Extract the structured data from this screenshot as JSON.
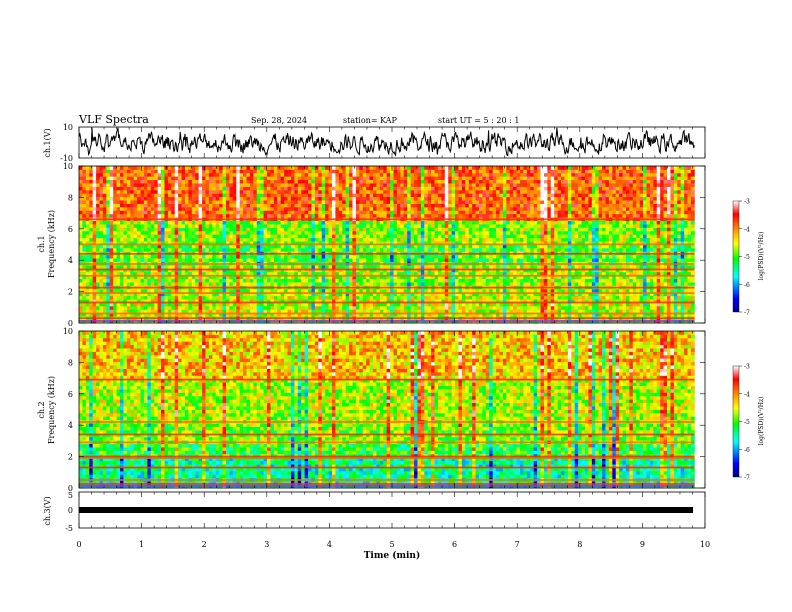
{
  "header": {
    "title": "VLF Spectra",
    "date": "Sep. 28, 2024",
    "station": "station= KAP",
    "start_ut": "start  UT  =   5  : 20 : 1"
  },
  "chart_data": [
    {
      "type": "line",
      "name": "ch1-waveform",
      "ylabel": "ch.1(V)",
      "ylim": [
        -10,
        10
      ],
      "yticks": [
        "10",
        "-10"
      ],
      "xlim": [
        0,
        10
      ]
    },
    {
      "type": "heatmap",
      "name": "ch1-spectrogram",
      "ylabel": "ch.1\nFrequency (kHz)",
      "ylim": [
        0,
        10
      ],
      "yticks": [
        "0",
        "2",
        "4",
        "6",
        "8",
        "10"
      ],
      "xlim": [
        0,
        10
      ],
      "data_extent_x": [
        0,
        9.83
      ],
      "colorbar": {
        "label": "log(PSD)(V²/Hz)",
        "range": [
          -7,
          -3
        ],
        "ticks": [
          "-3",
          "-4",
          "-5",
          "-6",
          "-7"
        ]
      },
      "bands_khz": [
        0.3,
        0.6,
        1.3,
        1.9,
        2.25,
        3.0,
        3.4,
        3.75,
        4.4,
        5.0,
        6.6
      ]
    },
    {
      "type": "heatmap",
      "name": "ch2-spectrogram",
      "ylabel": "ch.2\nFrequency (kHz)",
      "ylim": [
        0,
        10
      ],
      "yticks": [
        "0",
        "2",
        "4",
        "6",
        "8",
        "10"
      ],
      "xlim": [
        0,
        10
      ],
      "data_extent_x": [
        0,
        9.83
      ],
      "colorbar": {
        "label": "log(PSD)(V²/Hz)",
        "range": [
          -7,
          -3
        ],
        "ticks": [
          "-3",
          "-4",
          "-5",
          "-6",
          "-7"
        ]
      },
      "bands_khz": [
        0.25,
        0.5,
        1.3,
        1.9,
        2.0,
        2.9,
        3.4,
        4.2,
        6.9
      ]
    },
    {
      "type": "line",
      "name": "ch3-level",
      "ylabel": "ch.3(V)",
      "ylim": [
        -5,
        5
      ],
      "yticks": [
        "5",
        "0",
        "-5"
      ],
      "xlim": [
        0,
        10
      ],
      "value": 0
    }
  ],
  "xaxis": {
    "label": "Time  (min)",
    "ticks": [
      "0",
      "1",
      "2",
      "3",
      "4",
      "5",
      "6",
      "7",
      "8",
      "9",
      "10"
    ]
  },
  "colors": {
    "waveform": "#000000",
    "colormap": [
      "#000080",
      "#0000ff",
      "#00ffff",
      "#00ff00",
      "#ffff00",
      "#ff7f00",
      "#ff0000",
      "#ffffff"
    ]
  }
}
